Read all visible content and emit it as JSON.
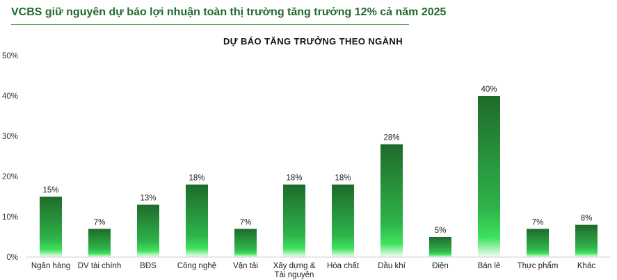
{
  "headline": "VCBS giữ nguyên dự báo lợi nhuận toàn thị trường tăng trưởng 12% cả năm 2025",
  "colors": {
    "headline": "#1f6b2c",
    "bar_top": "#1e6b2a",
    "bar_mid": "#2fb34a",
    "bar_bottom": "#f3fff4"
  },
  "chart_data": {
    "type": "bar",
    "title": "DỰ BÁO TĂNG TRƯỞNG THEO NGÀNH",
    "categories": [
      [
        "Ngân hàng"
      ],
      [
        "DV tài chính"
      ],
      [
        "BĐS"
      ],
      [
        "Công nghệ"
      ],
      [
        "Vận tải"
      ],
      [
        "Xây dựng &",
        "Tài nguyên"
      ],
      [
        "Hóa chất"
      ],
      [
        "Dầu khí"
      ],
      [
        "Điện"
      ],
      [
        "Bán lẻ"
      ],
      [
        "Thực phẩm"
      ],
      [
        "Khác"
      ]
    ],
    "values": [
      15,
      7,
      13,
      18,
      7,
      18,
      18,
      28,
      5,
      40,
      7,
      8
    ],
    "value_labels": [
      "15%",
      "7%",
      "13%",
      "18%",
      "7%",
      "18%",
      "18%",
      "28%",
      "5%",
      "40%",
      "7%",
      "8%"
    ],
    "ylim": [
      0,
      50
    ],
    "yticks": [
      0,
      10,
      20,
      30,
      40,
      50
    ],
    "ytick_labels": [
      "0%",
      "10%",
      "20%",
      "30%",
      "40%",
      "50%"
    ],
    "grid": false,
    "legend": "none"
  }
}
